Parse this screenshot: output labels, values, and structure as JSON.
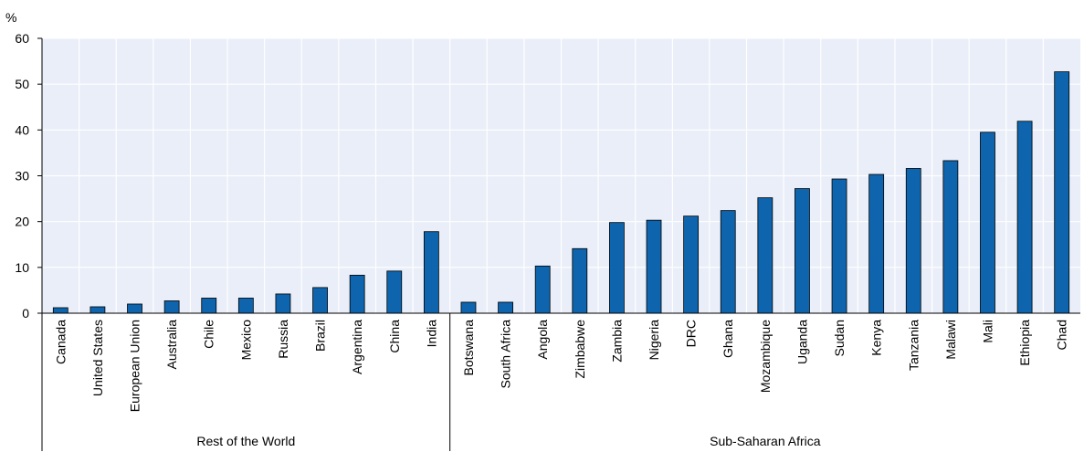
{
  "chart_data": {
    "type": "bar",
    "ylabel": "%",
    "ylim": [
      0,
      60
    ],
    "yticks": [
      0,
      10,
      20,
      30,
      40,
      50,
      60
    ],
    "grid": true,
    "categories": [
      "Canada",
      "United States",
      "European Union",
      "Australia",
      "Chile",
      "Mexico",
      "Russia",
      "Brazil",
      "Argentina",
      "China",
      "India",
      "Botswana",
      "South Africa",
      "Angola",
      "Zimbabwe",
      "Zambia",
      "Nigeria",
      "DRC",
      "Ghana",
      "Mozambique",
      "Uganda",
      "Sudan",
      "Kenya",
      "Tanzania",
      "Malawi",
      "Mali",
      "Ethiopia",
      "Chad"
    ],
    "values": [
      1.2,
      1.4,
      2.0,
      2.7,
      3.3,
      3.3,
      4.2,
      5.6,
      8.3,
      9.2,
      17.8,
      2.4,
      2.4,
      10.3,
      14.1,
      19.8,
      20.3,
      21.2,
      22.4,
      25.2,
      27.2,
      29.3,
      30.3,
      31.6,
      33.3,
      39.5,
      41.9,
      52.7
    ],
    "groups": [
      {
        "label": "Rest of the World",
        "count": 11
      },
      {
        "label": "Sub-Saharan Africa",
        "count": 17
      }
    ],
    "colors": {
      "bar": "#0e64ad",
      "bar_edge": "#000000",
      "plot_bg": "#e9eef8",
      "grid": "#ffffff"
    }
  }
}
